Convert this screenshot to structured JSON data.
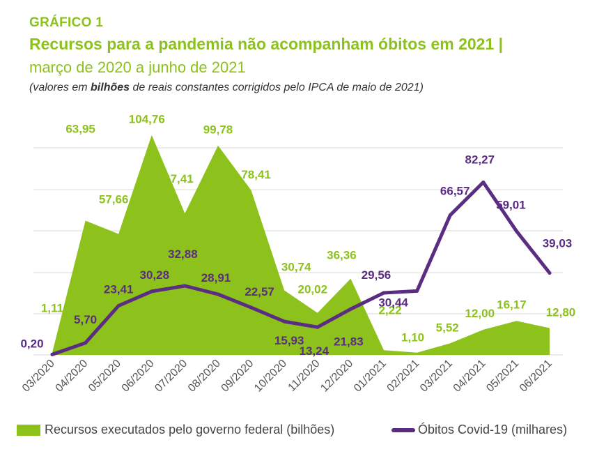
{
  "header": {
    "eyebrow": "GRÁFICO 1",
    "title": "Recursos para a pandemia não acompanham óbitos em 2021 |",
    "subtitle": "março de 2020 a junho de 2021",
    "note_prefix": "(valores em ",
    "note_bold": "bilhões",
    "note_suffix": " de reais constantes corrigidos pelo IPCA de maio de 2021)"
  },
  "colors": {
    "accent_green": "#8cc21b",
    "accent_purple": "#5b2d82"
  },
  "chart_data": {
    "type": "area",
    "categories": [
      "03/2020",
      "04/2020",
      "05/2020",
      "06/2020",
      "07/2020",
      "08/2020",
      "09/2020",
      "10/2020",
      "11/2020",
      "12/2020",
      "01/2021",
      "02/2021",
      "03/2021",
      "04/2021",
      "05/2021",
      "06/2021"
    ],
    "series": [
      {
        "name": "Recursos executados pelo governo federal (bilhões)",
        "kind": "area",
        "color": "#8cc21b",
        "values": [
          1.11,
          63.95,
          57.66,
          104.76,
          67.41,
          99.78,
          78.41,
          30.74,
          20.02,
          36.36,
          2.22,
          1.1,
          5.52,
          12.0,
          16.17,
          12.8
        ],
        "labels": [
          "1,11",
          "63,95",
          "57,66",
          "104,76",
          "67,41",
          "99,78",
          "78,41",
          "30,74",
          "20,02",
          "36,36",
          "2,22",
          "1,10",
          "5,52",
          "12,00",
          "16,17",
          "12,80"
        ]
      },
      {
        "name": "Óbitos Covid-19 (milhares)",
        "kind": "line",
        "color": "#5b2d82",
        "values": [
          0.2,
          5.7,
          23.41,
          30.28,
          32.88,
          28.91,
          22.57,
          15.93,
          13.24,
          21.83,
          29.56,
          30.44,
          66.57,
          82.27,
          59.01,
          39.03
        ],
        "labels": [
          "0,20",
          "5,70",
          "23,41",
          "30,28",
          "32,88",
          "28,91",
          "22,57",
          "15,93",
          "13,24",
          "21,83",
          "29,56",
          "30,44",
          "66,57",
          "82,27",
          "59,01",
          "39,03"
        ]
      }
    ],
    "ylim": [
      0,
      105
    ],
    "grid": true,
    "legend_position": "bottom"
  }
}
